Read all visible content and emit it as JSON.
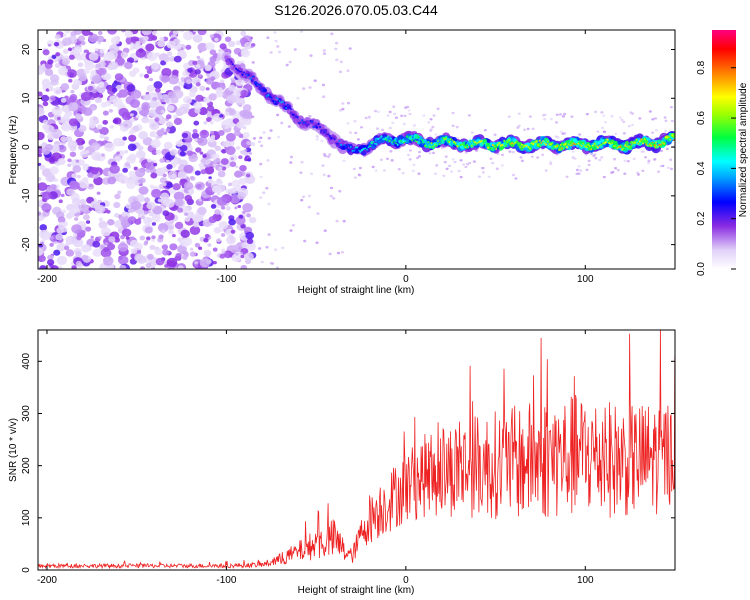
{
  "chart_data": [
    {
      "id": "spectrogram",
      "type": "heatmap",
      "title": "S126.2026.070.05.03.C44",
      "xlabel": "Height of straight line (km)",
      "ylabel": "Frequency (Hz)",
      "xlim": [
        -205,
        150
      ],
      "ylim": [
        -25,
        24
      ],
      "xticks": [
        -200,
        -100,
        0,
        100
      ],
      "xtick_labels": [
        "-200",
        "-100",
        "0",
        "100"
      ],
      "yticks": [
        20,
        10,
        0,
        -10,
        -20
      ],
      "ytick_labels": [
        "20",
        "10",
        "0",
        "-10",
        "-20"
      ],
      "colorbar": {
        "label": "Normalized spectral amplitude",
        "range": [
          0.0,
          0.95
        ],
        "ticks": [
          0.0,
          0.2,
          0.4,
          0.6,
          0.8
        ],
        "tick_labels": [
          "0.0",
          "0.2",
          "0.4",
          "0.6",
          "0.8"
        ],
        "colors": [
          "#ffffff",
          "#d8c8f8",
          "#8a2be2",
          "#0000ff",
          "#00ffff",
          "#00ff00",
          "#ffff00",
          "#ff8000",
          "#ff0000",
          "#ff0080"
        ]
      },
      "noise_region": {
        "x_range": [
          -205,
          -95
        ],
        "freq_range": [
          -25,
          24
        ],
        "amplitude": [
          0.05,
          0.2
        ]
      },
      "ridge": {
        "description_free": true,
        "x": [
          -100,
          -90,
          -80,
          -70,
          -60,
          -50,
          -40,
          -35,
          -30,
          -20,
          -10,
          0,
          10,
          20,
          40,
          60,
          80,
          100,
          120,
          140,
          150
        ],
        "freq": [
          18,
          15,
          12,
          9,
          6,
          4,
          2,
          0,
          -1,
          0.5,
          1.5,
          1.5,
          1,
          1,
          0.5,
          0.5,
          0.5,
          0.5,
          0.5,
          1,
          1.5
        ],
        "amplitude": [
          0.25,
          0.3,
          0.35,
          0.35,
          0.3,
          0.3,
          0.3,
          0.35,
          0.4,
          0.45,
          0.5,
          0.55,
          0.6,
          0.6,
          0.65,
          0.7,
          0.7,
          0.7,
          0.7,
          0.75,
          0.75
        ]
      }
    },
    {
      "id": "snr",
      "type": "line",
      "xlabel": "Height of straight line (km)",
      "ylabel": "SNR (10 * v/v)",
      "xlim": [
        -205,
        150
      ],
      "ylim": [
        0,
        460
      ],
      "xticks": [
        -200,
        -100,
        0,
        100
      ],
      "xtick_labels": [
        "-200",
        "-100",
        "0",
        "100"
      ],
      "yticks": [
        0,
        100,
        200,
        300,
        400
      ],
      "ytick_labels": [
        "0",
        "100",
        "200",
        "300",
        "400"
      ],
      "series": [
        {
          "name": "SNR",
          "color": "#ee2222",
          "envelope_x": [
            -205,
            -150,
            -100,
            -80,
            -70,
            -60,
            -50,
            -40,
            -35,
            -30,
            -25,
            -20,
            -10,
            0,
            10,
            20,
            40,
            60,
            80,
            100,
            120,
            140,
            150
          ],
          "envelope_mean": [
            8,
            8,
            8,
            10,
            20,
            35,
            50,
            60,
            40,
            25,
            70,
            100,
            130,
            160,
            180,
            190,
            200,
            205,
            215,
            220,
            210,
            215,
            230
          ],
          "envelope_amp": [
            4,
            4,
            4,
            5,
            12,
            20,
            30,
            40,
            25,
            15,
            30,
            50,
            60,
            70,
            80,
            90,
            100,
            110,
            120,
            120,
            110,
            110,
            100
          ]
        }
      ]
    }
  ]
}
